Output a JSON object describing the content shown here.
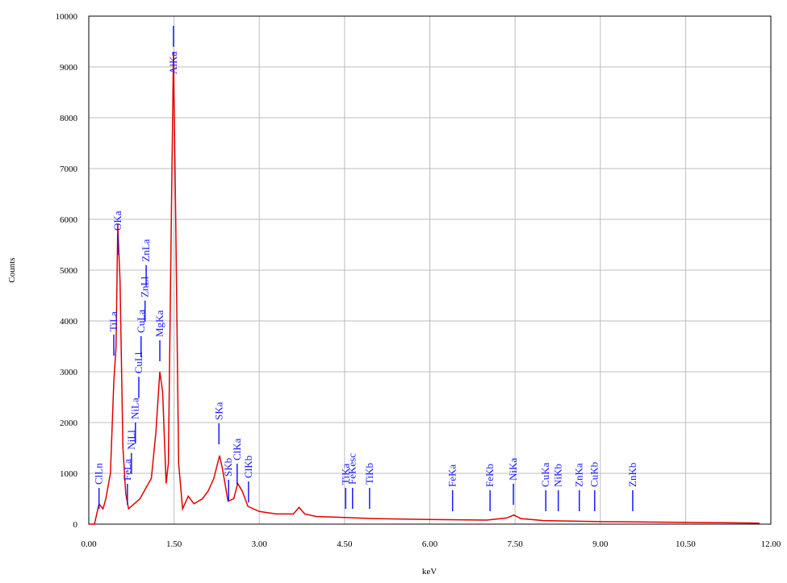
{
  "chart_data": {
    "type": "spectrum",
    "x_label": "keV",
    "y_label": "Counts",
    "xlim": [
      0,
      12
    ],
    "ylim": [
      0,
      10000
    ],
    "xticks": [
      {
        "value": 0,
        "label": "0.00"
      },
      {
        "value": 1.5,
        "label": "1.50"
      },
      {
        "value": 3,
        "label": "3.00"
      },
      {
        "value": 4.5,
        "label": "4.50"
      },
      {
        "value": 6,
        "label": "6.00"
      },
      {
        "value": 7.5,
        "label": "7.50"
      },
      {
        "value": 9,
        "label": "9.00"
      },
      {
        "value": 10.5,
        "label": "10.50"
      },
      {
        "value": 12,
        "label": "12.00"
      }
    ],
    "yticks": [
      0,
      1000,
      2000,
      3000,
      4000,
      5000,
      6000,
      7000,
      8000,
      9000,
      10000
    ],
    "grid": true,
    "color": "#e00000",
    "marker_color": "#1a1aff",
    "x": [
      0,
      0.1,
      0.18,
      0.25,
      0.3,
      0.38,
      0.44,
      0.48,
      0.51,
      0.55,
      0.6,
      0.65,
      0.7,
      0.8,
      0.9,
      1.0,
      1.1,
      1.18,
      1.25,
      1.3,
      1.36,
      1.4,
      1.45,
      1.49,
      1.53,
      1.58,
      1.65,
      1.75,
      1.85,
      2.0,
      2.1,
      2.2,
      2.3,
      2.35,
      2.45,
      2.55,
      2.62,
      2.7,
      2.8,
      3.0,
      3.3,
      3.6,
      3.7,
      3.8,
      4.0,
      4.5,
      5.0,
      6.0,
      7.0,
      7.35,
      7.48,
      7.6,
      8.0,
      9.0,
      10.0,
      11.0,
      11.8
    ],
    "values": [
      0,
      0,
      400,
      300,
      500,
      1000,
      2800,
      3500,
      5900,
      4800,
      1500,
      600,
      300,
      400,
      500,
      700,
      900,
      1800,
      3000,
      2600,
      800,
      1200,
      5800,
      9300,
      6000,
      1200,
      300,
      550,
      400,
      500,
      650,
      900,
      1350,
      1100,
      450,
      500,
      800,
      650,
      350,
      250,
      200,
      200,
      330,
      200,
      150,
      130,
      110,
      90,
      80,
      120,
      180,
      110,
      70,
      50,
      40,
      30,
      20
    ],
    "peaks": [
      {
        "label": "ClLn",
        "energy": 0.18,
        "height": 714
      },
      {
        "label": "TiLa",
        "energy": 0.44,
        "height": 3730
      },
      {
        "label": "OKa",
        "energy": 0.51,
        "height": 5714
      },
      {
        "label": "FeLa",
        "energy": 0.68,
        "height": 794
      },
      {
        "label": "NiLl",
        "energy": 0.75,
        "height": 1400
      },
      {
        "label": "NiLa",
        "energy": 0.82,
        "height": 2000
      },
      {
        "label": "CuLl",
        "energy": 0.88,
        "height": 2900
      },
      {
        "label": "CuLa",
        "energy": 0.92,
        "height": 3700
      },
      {
        "label": "ZnLl",
        "energy": 0.99,
        "height": 4400
      },
      {
        "label": "ZnLa",
        "energy": 1.01,
        "height": 5100
      },
      {
        "label": "MgKa",
        "energy": 1.25,
        "height": 3619
      },
      {
        "label": "AlKa",
        "energy": 1.49,
        "height": 9810
      },
      {
        "label": "SKa",
        "energy": 2.29,
        "height": 1984
      },
      {
        "label": "SKb",
        "energy": 2.46,
        "height": 873
      },
      {
        "label": "ClKa",
        "energy": 2.61,
        "height": 1190
      },
      {
        "label": "ClKb",
        "energy": 2.81,
        "height": 841
      },
      {
        "label": "TiKa",
        "energy": 4.52,
        "height": 714
      },
      {
        "label": "FeKesc",
        "energy": 4.64,
        "height": 714
      },
      {
        "label": "TiKb",
        "energy": 4.94,
        "height": 714
      },
      {
        "label": "FeKa",
        "energy": 6.4,
        "height": 667
      },
      {
        "label": "FeKb",
        "energy": 7.06,
        "height": 667
      },
      {
        "label": "NiKa",
        "energy": 7.47,
        "height": 794
      },
      {
        "label": "CuKa",
        "energy": 8.04,
        "height": 667
      },
      {
        "label": "NiKb",
        "energy": 8.26,
        "height": 667
      },
      {
        "label": "ZnKa",
        "energy": 8.63,
        "height": 667
      },
      {
        "label": "CuKb",
        "energy": 8.9,
        "height": 667
      },
      {
        "label": "ZnKb",
        "energy": 9.57,
        "height": 667
      }
    ]
  }
}
